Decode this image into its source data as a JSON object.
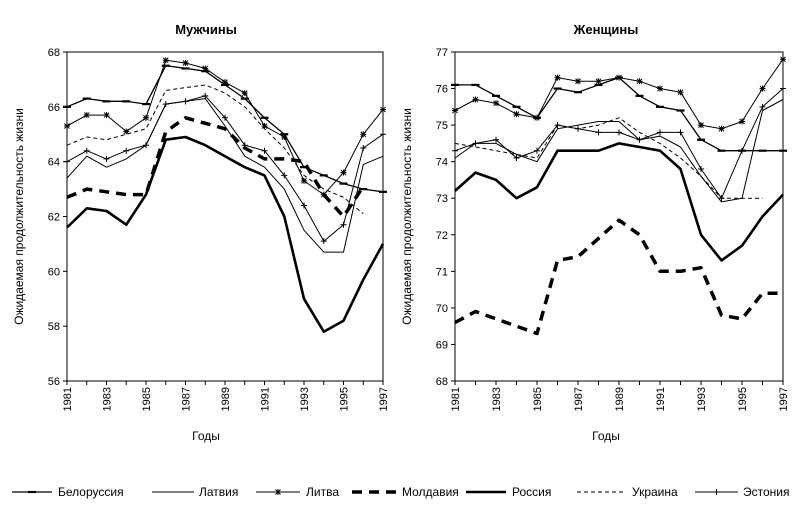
{
  "chart_data": [
    {
      "type": "line",
      "title": "Мужчины",
      "xlabel": "Годы",
      "ylabel": "Ожидаемая продолжительность жизни",
      "ylim": [
        56,
        68
      ],
      "yticks": [
        "56",
        "58",
        "60",
        "62",
        "64",
        "66",
        "68"
      ],
      "xticks": [
        "1981",
        "1983",
        "1985",
        "1987",
        "1989",
        "1991",
        "1993",
        "1995",
        "1997"
      ],
      "x": [
        1981,
        1982,
        1983,
        1984,
        1985,
        1986,
        1987,
        1988,
        1989,
        1990,
        1991,
        1992,
        1993,
        1994,
        1995,
        1996,
        1997
      ],
      "series": [
        {
          "name": "Белоруссия",
          "values": [
            66.0,
            66.3,
            66.2,
            66.2,
            66.1,
            67.5,
            67.4,
            67.3,
            66.8,
            66.3,
            65.6,
            65.0,
            63.8,
            63.5,
            63.2,
            63.0,
            62.9
          ]
        },
        {
          "name": "Латвия",
          "values": [
            63.4,
            64.2,
            63.8,
            64.1,
            64.6,
            66.1,
            66.2,
            66.3,
            65.3,
            64.2,
            63.8,
            63.0,
            61.5,
            60.7,
            60.7,
            63.9,
            64.2
          ]
        },
        {
          "name": "Литва",
          "values": [
            65.3,
            65.7,
            65.7,
            65.1,
            65.6,
            67.7,
            67.6,
            67.4,
            66.9,
            66.5,
            65.3,
            64.9,
            63.3,
            62.8,
            63.6,
            65.0,
            65.9
          ]
        },
        {
          "name": "Молдавия",
          "values": [
            62.7,
            63.0,
            62.9,
            62.8,
            62.8,
            65.1,
            65.6,
            65.4,
            65.2,
            64.5,
            64.1,
            64.1,
            64.0,
            62.8,
            62.0,
            63.1,
            null
          ]
        },
        {
          "name": "Россия",
          "values": [
            61.6,
            62.3,
            62.2,
            61.7,
            62.8,
            64.8,
            64.9,
            64.6,
            64.2,
            63.8,
            63.5,
            62.0,
            59.0,
            57.8,
            58.2,
            59.7,
            61.0
          ]
        },
        {
          "name": "Украина",
          "values": [
            64.6,
            64.9,
            64.8,
            65.0,
            65.2,
            66.6,
            66.7,
            66.8,
            66.5,
            66.0,
            65.2,
            64.5,
            63.5,
            63.0,
            62.7,
            62.1,
            null
          ]
        },
        {
          "name": "Эстония",
          "values": [
            64.0,
            64.4,
            64.1,
            64.4,
            64.6,
            66.1,
            66.2,
            66.4,
            65.6,
            64.6,
            64.4,
            63.5,
            62.4,
            61.1,
            61.7,
            64.5,
            65.0
          ]
        }
      ],
      "legend": "bottom"
    },
    {
      "type": "line",
      "title": "Женщины",
      "xlabel": "Годы",
      "ylabel": "Ожидаемая продолжительность жизни",
      "ylim": [
        68,
        77
      ],
      "yticks": [
        "68",
        "69",
        "70",
        "71",
        "72",
        "73",
        "74",
        "75",
        "76",
        "77"
      ],
      "xticks": [
        "1981",
        "1983",
        "1985",
        "1987",
        "1989",
        "1991",
        "1993",
        "1995",
        "1997"
      ],
      "x": [
        1981,
        1982,
        1983,
        1984,
        1985,
        1986,
        1987,
        1988,
        1989,
        1990,
        1991,
        1992,
        1993,
        1994,
        1995,
        1996,
        1997
      ],
      "series": [
        {
          "name": "Белоруссия",
          "values": [
            76.1,
            76.1,
            75.8,
            75.5,
            75.2,
            76.0,
            75.9,
            76.1,
            76.3,
            75.8,
            75.5,
            75.4,
            74.6,
            74.3,
            74.3,
            74.3,
            74.3
          ]
        },
        {
          "name": "Латвия",
          "values": [
            74.1,
            74.5,
            74.5,
            74.2,
            74.0,
            74.9,
            75.0,
            75.1,
            75.1,
            74.6,
            74.7,
            74.4,
            73.6,
            72.9,
            73.0,
            75.4,
            75.7
          ]
        },
        {
          "name": "Литва",
          "values": [
            75.4,
            75.7,
            75.6,
            75.3,
            75.2,
            76.3,
            76.2,
            76.2,
            76.3,
            76.2,
            76.0,
            75.9,
            75.0,
            74.9,
            75.1,
            76.0,
            76.8
          ]
        },
        {
          "name": "Молдавия",
          "values": [
            69.6,
            69.9,
            69.7,
            69.5,
            69.3,
            71.3,
            71.4,
            71.9,
            72.4,
            72.0,
            71.0,
            71.0,
            71.1,
            69.8,
            69.7,
            70.4,
            70.4
          ]
        },
        {
          "name": "Россия",
          "values": [
            73.2,
            73.7,
            73.5,
            73.0,
            73.3,
            74.3,
            74.3,
            74.3,
            74.5,
            74.4,
            74.3,
            73.8,
            72.0,
            71.3,
            71.7,
            72.5,
            73.1
          ]
        },
        {
          "name": "Украина",
          "values": [
            74.5,
            74.4,
            74.3,
            74.2,
            74.1,
            75.0,
            74.9,
            75.0,
            75.2,
            74.8,
            74.5,
            74.1,
            73.6,
            73.0,
            73.0,
            73.0,
            null
          ]
        },
        {
          "name": "Эстония",
          "values": [
            74.3,
            74.5,
            74.6,
            74.1,
            74.3,
            75.0,
            74.9,
            74.8,
            74.8,
            74.6,
            74.8,
            74.8,
            73.8,
            73.0,
            74.3,
            75.5,
            76.0
          ]
        }
      ],
      "legend": "bottom"
    }
  ],
  "legend": [
    {
      "name": "Белоруссия",
      "style": "thin-dash-marker"
    },
    {
      "name": "Латвия",
      "style": "thin-solid"
    },
    {
      "name": "Литва",
      "style": "star-marker"
    },
    {
      "name": "Молдавия",
      "style": "thick-dashed"
    },
    {
      "name": "Россия",
      "style": "thick-solid"
    },
    {
      "name": "Украина",
      "style": "thin-dashed"
    },
    {
      "name": "Эстония",
      "style": "plus-marker"
    }
  ],
  "colors": {
    "ink": "#000000",
    "background": "#ffffff"
  }
}
